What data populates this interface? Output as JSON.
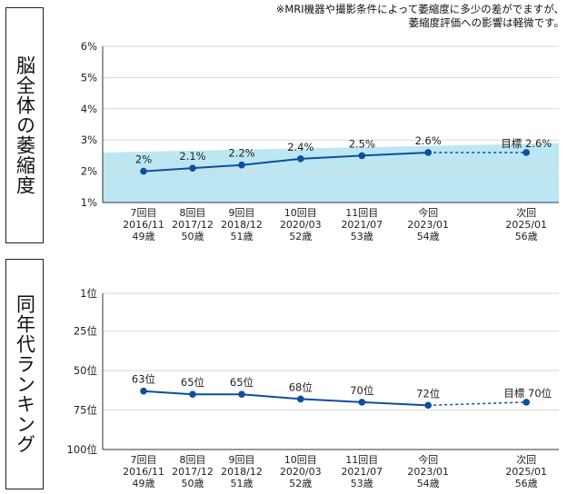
{
  "note": {
    "line1": "※MRI機器や撮影条件によって萎縮度に多少の差がでますが、",
    "line2": "萎縮度評価への影響は軽微です。"
  },
  "colors": {
    "line": "#0d4f9c",
    "band": "#bde6f3",
    "grid": "#d8d8d8",
    "axis": "#333333"
  },
  "x_labels": [
    [
      "7回目",
      "2016/11",
      "49歳"
    ],
    [
      "8回目",
      "2017/12",
      "50歳"
    ],
    [
      "9回目",
      "2018/12",
      "51歳"
    ],
    [
      "10回目",
      "2020/03",
      "52歳"
    ],
    [
      "11回目",
      "2021/07",
      "53歳"
    ],
    [
      "今回",
      "2023/01",
      "54歳"
    ],
    [
      "次回",
      "2025/01",
      "56歳"
    ]
  ],
  "chart_data": [
    {
      "type": "line",
      "ylabel": "脳全体の萎縮度",
      "yticks": [
        "6%",
        "5%",
        "4%",
        "3%",
        "2%",
        "1%"
      ],
      "ylim": [
        1,
        6
      ],
      "grid": true,
      "x_positions": [
        0,
        1,
        2,
        3.2,
        4.45,
        5.8,
        7.8
      ],
      "values": [
        2.0,
        2.1,
        2.2,
        2.4,
        2.5,
        2.6,
        2.6
      ],
      "labels": [
        "2%",
        "2.1%",
        "2.2%",
        "2.4%",
        "2.5%",
        "2.6%",
        "目標 2.6%"
      ],
      "band": {
        "top_start": 2.6,
        "top_end": 2.9,
        "bottom": 1.0
      }
    },
    {
      "type": "line",
      "ylabel": "同年代ランキング",
      "yticks": [
        "1位",
        "25位",
        "50位",
        "75位",
        "100位"
      ],
      "ylim": [
        1,
        100
      ],
      "inverted": true,
      "grid": true,
      "x_positions": [
        0,
        1,
        2,
        3.2,
        4.45,
        5.8,
        7.8
      ],
      "values": [
        63,
        65,
        65,
        68,
        70,
        72,
        70
      ],
      "labels": [
        "63位",
        "65位",
        "65位",
        "68位",
        "70位",
        "72位",
        "目標 70位"
      ]
    }
  ]
}
